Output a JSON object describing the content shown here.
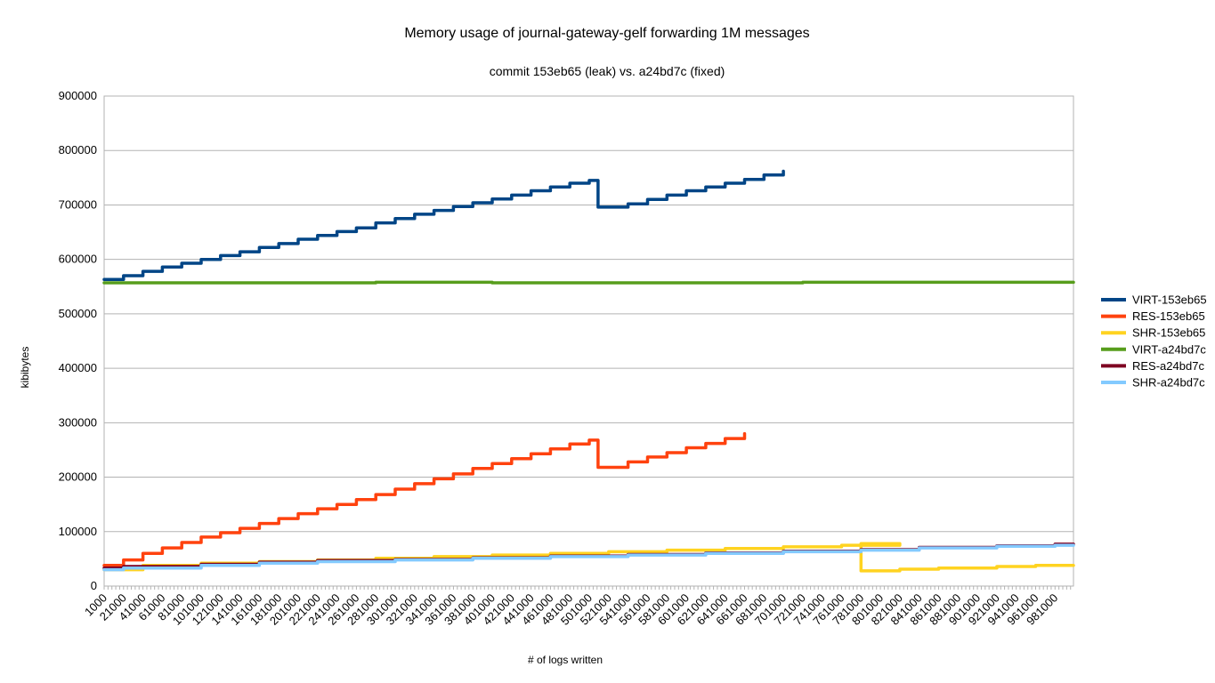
{
  "chart_data": {
    "type": "line",
    "title": "Memory usage of journal-gateway-gelf forwarding 1M messages",
    "subtitle": "commit 153eb65 (leak) vs. a24bd7c (fixed)",
    "xlabel": "# of logs written",
    "ylabel": "kibibytes",
    "ylim": [
      0,
      900000
    ],
    "yticks": [
      0,
      100000,
      200000,
      300000,
      400000,
      500000,
      600000,
      700000,
      800000,
      900000
    ],
    "x_range": [
      1000,
      1000000
    ],
    "x_ticks": [
      1000,
      21000,
      41000,
      61000,
      81000,
      101000,
      121000,
      141000,
      161000,
      181000,
      201000,
      221000,
      241000,
      261000,
      281000,
      301000,
      321000,
      341000,
      361000,
      381000,
      401000,
      421000,
      441000,
      461000,
      481000,
      501000,
      521000,
      541000,
      561000,
      581000,
      601000,
      621000,
      641000,
      661000,
      681000,
      701000,
      721000,
      741000,
      761000,
      781000,
      801000,
      821000,
      841000,
      861000,
      881000,
      901000,
      921000,
      941000,
      961000,
      981000
    ],
    "grid": true,
    "legend_position": "right",
    "series": [
      {
        "name": "VIRT-153eb65",
        "color": "#004586",
        "points": [
          [
            1000,
            563000
          ],
          [
            21000,
            563000
          ],
          [
            21000,
            570000
          ],
          [
            41000,
            570000
          ],
          [
            41000,
            578000
          ],
          [
            61000,
            578000
          ],
          [
            61000,
            586000
          ],
          [
            81000,
            586000
          ],
          [
            81000,
            593000
          ],
          [
            101000,
            593000
          ],
          [
            101000,
            600000
          ],
          [
            121000,
            600000
          ],
          [
            121000,
            607000
          ],
          [
            141000,
            607000
          ],
          [
            141000,
            614000
          ],
          [
            161000,
            614000
          ],
          [
            161000,
            622000
          ],
          [
            181000,
            622000
          ],
          [
            181000,
            629000
          ],
          [
            201000,
            629000
          ],
          [
            201000,
            637000
          ],
          [
            221000,
            637000
          ],
          [
            221000,
            644000
          ],
          [
            241000,
            644000
          ],
          [
            241000,
            651000
          ],
          [
            261000,
            651000
          ],
          [
            261000,
            658000
          ],
          [
            281000,
            658000
          ],
          [
            281000,
            667000
          ],
          [
            301000,
            667000
          ],
          [
            301000,
            675000
          ],
          [
            321000,
            675000
          ],
          [
            321000,
            683000
          ],
          [
            341000,
            683000
          ],
          [
            341000,
            690000
          ],
          [
            361000,
            690000
          ],
          [
            361000,
            697000
          ],
          [
            381000,
            697000
          ],
          [
            381000,
            704000
          ],
          [
            401000,
            704000
          ],
          [
            401000,
            711000
          ],
          [
            421000,
            711000
          ],
          [
            421000,
            718000
          ],
          [
            441000,
            718000
          ],
          [
            441000,
            726000
          ],
          [
            461000,
            726000
          ],
          [
            461000,
            733000
          ],
          [
            481000,
            733000
          ],
          [
            481000,
            740000
          ],
          [
            501000,
            740000
          ],
          [
            501000,
            745000
          ],
          [
            510000,
            745000
          ],
          [
            510000,
            696000
          ],
          [
            541000,
            696000
          ],
          [
            541000,
            702000
          ],
          [
            561000,
            702000
          ],
          [
            561000,
            710000
          ],
          [
            581000,
            710000
          ],
          [
            581000,
            718000
          ],
          [
            601000,
            718000
          ],
          [
            601000,
            726000
          ],
          [
            621000,
            726000
          ],
          [
            621000,
            733000
          ],
          [
            641000,
            733000
          ],
          [
            641000,
            740000
          ],
          [
            661000,
            740000
          ],
          [
            661000,
            747000
          ],
          [
            681000,
            747000
          ],
          [
            681000,
            755000
          ],
          [
            701000,
            755000
          ],
          [
            701000,
            762000
          ]
        ]
      },
      {
        "name": "RES-153eb65",
        "color": "#ff420e",
        "points": [
          [
            1000,
            38000
          ],
          [
            21000,
            38000
          ],
          [
            21000,
            48000
          ],
          [
            41000,
            48000
          ],
          [
            41000,
            60000
          ],
          [
            61000,
            60000
          ],
          [
            61000,
            70000
          ],
          [
            81000,
            70000
          ],
          [
            81000,
            80000
          ],
          [
            101000,
            80000
          ],
          [
            101000,
            90000
          ],
          [
            121000,
            90000
          ],
          [
            121000,
            98000
          ],
          [
            141000,
            98000
          ],
          [
            141000,
            106000
          ],
          [
            161000,
            106000
          ],
          [
            161000,
            115000
          ],
          [
            181000,
            115000
          ],
          [
            181000,
            124000
          ],
          [
            201000,
            124000
          ],
          [
            201000,
            133000
          ],
          [
            221000,
            133000
          ],
          [
            221000,
            142000
          ],
          [
            241000,
            142000
          ],
          [
            241000,
            150000
          ],
          [
            261000,
            150000
          ],
          [
            261000,
            159000
          ],
          [
            281000,
            159000
          ],
          [
            281000,
            168000
          ],
          [
            301000,
            168000
          ],
          [
            301000,
            178000
          ],
          [
            321000,
            178000
          ],
          [
            321000,
            188000
          ],
          [
            341000,
            188000
          ],
          [
            341000,
            197000
          ],
          [
            361000,
            197000
          ],
          [
            361000,
            206000
          ],
          [
            381000,
            206000
          ],
          [
            381000,
            216000
          ],
          [
            401000,
            216000
          ],
          [
            401000,
            225000
          ],
          [
            421000,
            225000
          ],
          [
            421000,
            234000
          ],
          [
            441000,
            234000
          ],
          [
            441000,
            243000
          ],
          [
            461000,
            243000
          ],
          [
            461000,
            252000
          ],
          [
            481000,
            252000
          ],
          [
            481000,
            261000
          ],
          [
            501000,
            261000
          ],
          [
            501000,
            268000
          ],
          [
            510000,
            268000
          ],
          [
            510000,
            218000
          ],
          [
            541000,
            218000
          ],
          [
            541000,
            228000
          ],
          [
            561000,
            228000
          ],
          [
            561000,
            237000
          ],
          [
            581000,
            237000
          ],
          [
            581000,
            245000
          ],
          [
            601000,
            245000
          ],
          [
            601000,
            254000
          ],
          [
            621000,
            254000
          ],
          [
            621000,
            262000
          ],
          [
            641000,
            262000
          ],
          [
            641000,
            271000
          ],
          [
            661000,
            271000
          ],
          [
            661000,
            280000
          ]
        ]
      },
      {
        "name": "SHR-153eb65",
        "color": "#ffd320",
        "points": [
          [
            1000,
            30000
          ],
          [
            41000,
            30000
          ],
          [
            41000,
            38000
          ],
          [
            101000,
            38000
          ],
          [
            101000,
            42000
          ],
          [
            161000,
            42000
          ],
          [
            161000,
            45000
          ],
          [
            221000,
            45000
          ],
          [
            221000,
            48000
          ],
          [
            281000,
            48000
          ],
          [
            281000,
            51000
          ],
          [
            341000,
            51000
          ],
          [
            341000,
            54000
          ],
          [
            401000,
            54000
          ],
          [
            401000,
            57000
          ],
          [
            461000,
            57000
          ],
          [
            461000,
            60000
          ],
          [
            521000,
            60000
          ],
          [
            521000,
            63000
          ],
          [
            581000,
            63000
          ],
          [
            581000,
            66000
          ],
          [
            641000,
            66000
          ],
          [
            641000,
            69000
          ],
          [
            701000,
            69000
          ],
          [
            701000,
            72000
          ],
          [
            761000,
            72000
          ],
          [
            761000,
            75000
          ],
          [
            821000,
            75000
          ],
          [
            821000,
            78000
          ],
          [
            781000,
            78000
          ],
          [
            781000,
            28000
          ],
          [
            821000,
            28000
          ],
          [
            821000,
            31000
          ],
          [
            861000,
            31000
          ],
          [
            861000,
            33000
          ],
          [
            921000,
            33000
          ],
          [
            921000,
            36000
          ],
          [
            961000,
            36000
          ],
          [
            961000,
            38000
          ],
          [
            1000000,
            38000
          ]
        ]
      },
      {
        "name": "VIRT-a24bd7c",
        "color": "#579d1c",
        "points": [
          [
            1000,
            557000
          ],
          [
            281000,
            557000
          ],
          [
            281000,
            558000
          ],
          [
            401000,
            558000
          ],
          [
            401000,
            557000
          ],
          [
            721000,
            557000
          ],
          [
            721000,
            558000
          ],
          [
            1000000,
            558000
          ]
        ]
      },
      {
        "name": "RES-a24bd7c",
        "color": "#7e0021",
        "points": [
          [
            1000,
            33000
          ],
          [
            21000,
            33000
          ],
          [
            21000,
            36000
          ],
          [
            101000,
            36000
          ],
          [
            101000,
            40000
          ],
          [
            161000,
            40000
          ],
          [
            161000,
            44000
          ],
          [
            221000,
            44000
          ],
          [
            221000,
            47000
          ],
          [
            301000,
            47000
          ],
          [
            301000,
            49000
          ],
          [
            381000,
            49000
          ],
          [
            381000,
            52000
          ],
          [
            461000,
            52000
          ],
          [
            461000,
            55000
          ],
          [
            541000,
            55000
          ],
          [
            541000,
            58000
          ],
          [
            621000,
            58000
          ],
          [
            621000,
            61000
          ],
          [
            701000,
            61000
          ],
          [
            701000,
            64000
          ],
          [
            781000,
            64000
          ],
          [
            781000,
            67000
          ],
          [
            841000,
            67000
          ],
          [
            841000,
            71000
          ],
          [
            921000,
            71000
          ],
          [
            921000,
            74000
          ],
          [
            981000,
            74000
          ],
          [
            981000,
            77000
          ],
          [
            1000000,
            77000
          ]
        ]
      },
      {
        "name": "SHR-a24bd7c",
        "color": "#83caff",
        "points": [
          [
            1000,
            30000
          ],
          [
            21000,
            30000
          ],
          [
            21000,
            33000
          ],
          [
            101000,
            33000
          ],
          [
            101000,
            38000
          ],
          [
            161000,
            38000
          ],
          [
            161000,
            42000
          ],
          [
            221000,
            42000
          ],
          [
            221000,
            45000
          ],
          [
            301000,
            45000
          ],
          [
            301000,
            48000
          ],
          [
            381000,
            48000
          ],
          [
            381000,
            51000
          ],
          [
            461000,
            51000
          ],
          [
            461000,
            54000
          ],
          [
            541000,
            54000
          ],
          [
            541000,
            57000
          ],
          [
            621000,
            57000
          ],
          [
            621000,
            60000
          ],
          [
            701000,
            60000
          ],
          [
            701000,
            63000
          ],
          [
            781000,
            63000
          ],
          [
            781000,
            66000
          ],
          [
            841000,
            66000
          ],
          [
            841000,
            70000
          ],
          [
            921000,
            70000
          ],
          [
            921000,
            73000
          ],
          [
            981000,
            73000
          ],
          [
            981000,
            75000
          ],
          [
            1000000,
            75000
          ]
        ]
      }
    ]
  }
}
